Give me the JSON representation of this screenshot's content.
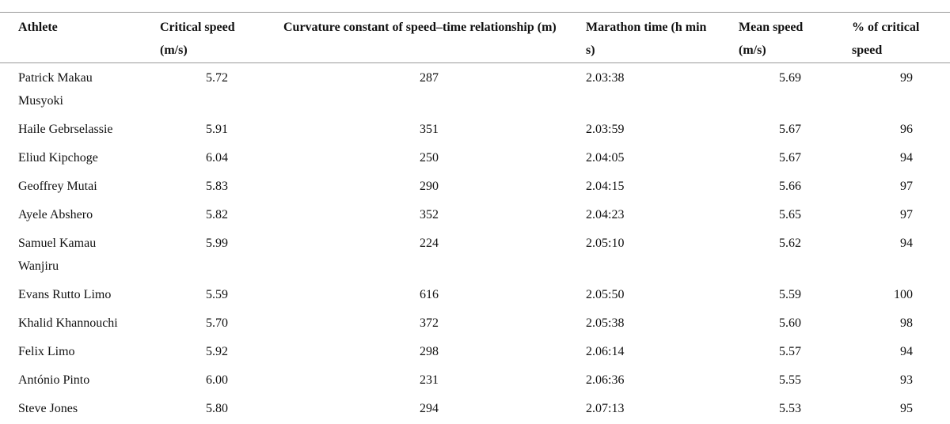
{
  "table": {
    "header": [
      "Athlete",
      "Critical speed (m/s)",
      "Curvature constant of speed–time relationship (m)",
      "Marathon time (h min s)",
      "Mean speed (m/s)",
      "% of critical speed"
    ],
    "rows": [
      [
        "Patrick Makau Musyoki",
        "5.72",
        "287",
        "2.03:38",
        "5.69",
        "99"
      ],
      [
        "Haile Gebrselassie",
        "5.91",
        "351",
        "2.03:59",
        "5.67",
        "96"
      ],
      [
        "Eliud Kipchoge",
        "6.04",
        "250",
        "2.04:05",
        "5.67",
        "94"
      ],
      [
        "Geoffrey Mutai",
        "5.83",
        "290",
        "2.04:15",
        "5.66",
        "97"
      ],
      [
        "Ayele Abshero",
        "5.82",
        "352",
        "2.04:23",
        "5.65",
        "97"
      ],
      [
        "Samuel Kamau Wanjiru",
        "5.99",
        "224",
        "2.05:10",
        "5.62",
        "94"
      ],
      [
        "Evans Rutto Limo",
        "5.59",
        "616",
        "2.05:50",
        "5.59",
        "100"
      ],
      [
        "Khalid Khannouchi",
        "5.70",
        "372",
        "2.05:38",
        "5.60",
        "98"
      ],
      [
        "Felix Limo",
        "5.92",
        "298",
        "2.06:14",
        "5.57",
        "94"
      ],
      [
        "António Pinto",
        "6.00",
        "231",
        "2.06:36",
        "5.55",
        "93"
      ],
      [
        "Steve Jones",
        "5.80",
        "294",
        "2.07:13",
        "5.53",
        "95"
      ]
    ]
  }
}
